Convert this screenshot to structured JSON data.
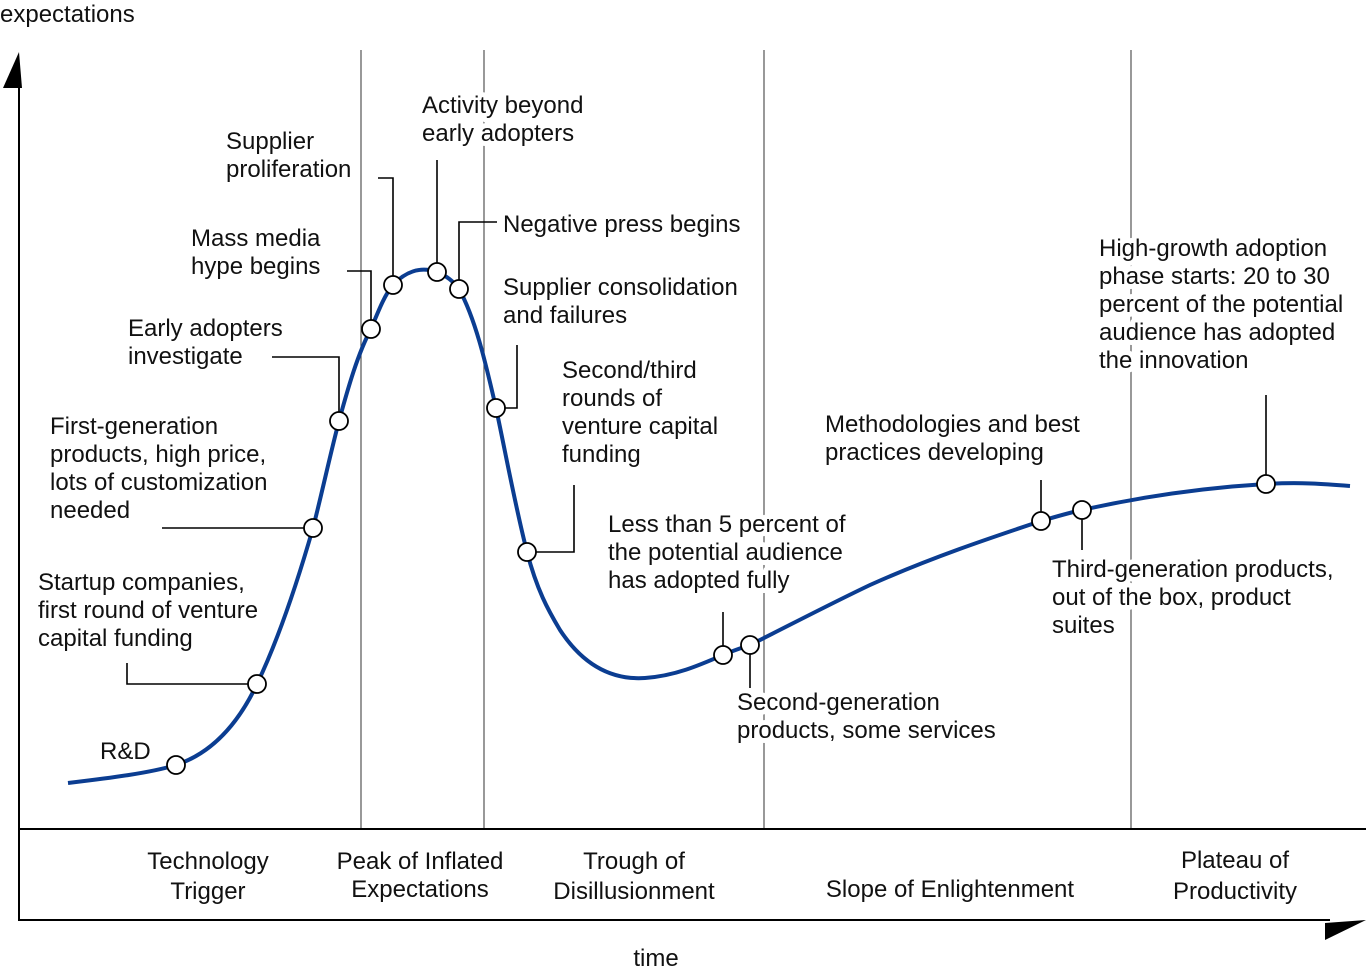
{
  "axes": {
    "y_label": "expectations",
    "x_label": "time"
  },
  "curve_color": "#0b3d91",
  "phases": [
    {
      "lines": [
        "Technology",
        "Trigger"
      ]
    },
    {
      "lines": [
        "Peak of Inflated",
        "Expectations"
      ]
    },
    {
      "lines": [
        "Trough of",
        "Disillusionment"
      ]
    },
    {
      "lines": [
        "Slope of Enlightenment"
      ]
    },
    {
      "lines": [
        "Plateau of",
        "Productivity"
      ]
    }
  ],
  "annotations": [
    {
      "lines": [
        "R&D"
      ]
    },
    {
      "lines": [
        "Startup companies,",
        "first round of venture",
        "capital funding"
      ]
    },
    {
      "lines": [
        "First-generation",
        "products, high price,",
        "lots of customization",
        "needed"
      ]
    },
    {
      "lines": [
        "Early adopters",
        "investigate"
      ]
    },
    {
      "lines": [
        "Mass media",
        "hype begins"
      ]
    },
    {
      "lines": [
        "Supplier",
        "proliferation"
      ]
    },
    {
      "lines": [
        "Activity beyond",
        "early adopters"
      ]
    },
    {
      "lines": [
        "Negative press begins"
      ]
    },
    {
      "lines": [
        "Supplier consolidation",
        "and failures"
      ]
    },
    {
      "lines": [
        "Second/third",
        "rounds of",
        "venture capital",
        "funding"
      ]
    },
    {
      "lines": [
        "Less than 5 percent of",
        "the potential audience",
        "has adopted fully"
      ]
    },
    {
      "lines": [
        "Second-generation",
        "products, some services"
      ]
    },
    {
      "lines": [
        "Methodologies and best",
        "practices developing"
      ]
    },
    {
      "lines": [
        "Third-generation products,",
        "out of the box, product",
        "suites"
      ]
    },
    {
      "lines": [
        "High-growth adoption",
        "phase starts: 20 to 30",
        "percent of the potential",
        "audience has adopted",
        "the innovation"
      ]
    }
  ]
}
